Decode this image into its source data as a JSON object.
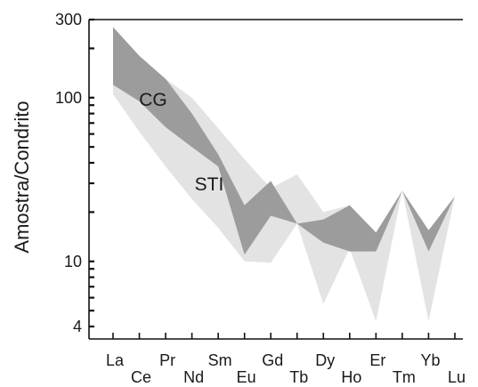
{
  "chart_data": {
    "type": "area",
    "title": "",
    "xlabel": "",
    "ylabel": "Amostra/Condrito",
    "yscale": "log",
    "ylim": [
      4,
      300
    ],
    "y_tick_labels": [
      "300",
      "100",
      "10",
      "4"
    ],
    "grid": false,
    "legend": "none",
    "categories": [
      "La",
      "Ce",
      "Pr",
      "Nd",
      "Sm",
      "Eu",
      "Gd",
      "Tb",
      "Dy",
      "Ho",
      "Er",
      "Tm",
      "Yb",
      "Lu"
    ],
    "series": [
      {
        "name": "STI",
        "color": "#e3e3e3",
        "upper": [
          140,
          120,
          130,
          100,
          65,
          42,
          28,
          34,
          20,
          22,
          15,
          27,
          14,
          25
        ],
        "lower": [
          105,
          62,
          38,
          24,
          16,
          10,
          9.8,
          17,
          5.5,
          12,
          4.3,
          27,
          4.3,
          25
        ]
      },
      {
        "name": "CG",
        "color": "#9c9c9c",
        "upper": [
          270,
          180,
          130,
          80,
          45,
          22,
          31,
          17,
          18,
          22,
          15,
          27,
          15.5,
          25
        ],
        "lower": [
          120,
          95,
          66,
          50,
          38,
          11,
          19,
          17,
          13,
          11.5,
          11.5,
          27,
          11.5,
          25
        ]
      }
    ],
    "series_labels": [
      "CG",
      "STI"
    ]
  }
}
